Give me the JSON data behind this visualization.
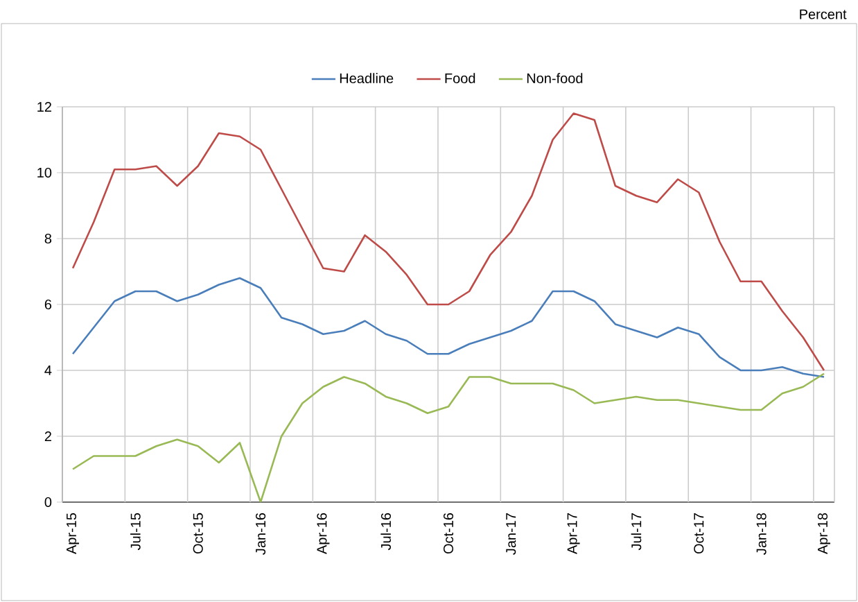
{
  "chart_data": {
    "type": "line",
    "annotations": [
      "Percent"
    ],
    "categories": [
      "Apr-15",
      null,
      null,
      "Jul-15",
      null,
      null,
      "Oct-15",
      null,
      null,
      "Jan-16",
      null,
      null,
      "Apr-16",
      null,
      null,
      "Jul-16",
      null,
      null,
      "Oct-16",
      null,
      null,
      "Jan-17",
      null,
      null,
      "Apr-17",
      null,
      null,
      "Jul-17",
      null,
      null,
      "Oct-17",
      null,
      null,
      "Jan-18",
      null,
      null,
      "Apr-18"
    ],
    "series": [
      {
        "name": "Headline",
        "color": "#4a7ebb",
        "values": [
          4.5,
          5.3,
          6.1,
          6.4,
          6.4,
          6.1,
          6.3,
          6.6,
          6.8,
          6.5,
          5.6,
          5.4,
          5.1,
          5.2,
          5.5,
          5.1,
          4.9,
          4.5,
          4.5,
          4.8,
          5.0,
          5.2,
          5.5,
          6.4,
          6.4,
          6.1,
          5.4,
          5.2,
          5.0,
          5.3,
          5.1,
          4.4,
          4.0,
          4.0,
          4.1,
          3.9,
          3.8
        ]
      },
      {
        "name": "Food",
        "color": "#be4b48",
        "values": [
          7.1,
          8.5,
          10.1,
          10.1,
          10.2,
          9.6,
          10.2,
          11.2,
          11.1,
          10.7,
          9.5,
          8.3,
          7.1,
          7.0,
          8.1,
          7.6,
          6.9,
          6.0,
          6.0,
          6.4,
          7.5,
          8.2,
          9.3,
          11.0,
          11.8,
          11.6,
          9.6,
          9.3,
          9.1,
          9.8,
          9.4,
          7.9,
          6.7,
          6.7,
          5.8,
          5.0,
          4.0
        ]
      },
      {
        "name": "Non-food",
        "color": "#98b954",
        "values": [
          1.0,
          1.4,
          1.4,
          1.4,
          1.7,
          1.9,
          1.7,
          1.2,
          1.8,
          0.0,
          2.0,
          3.0,
          3.5,
          3.8,
          3.6,
          3.2,
          3.0,
          2.7,
          2.9,
          3.8,
          3.8,
          3.6,
          3.6,
          3.6,
          3.4,
          3.0,
          3.1,
          3.2,
          3.1,
          3.1,
          3.0,
          2.9,
          2.8,
          2.8,
          3.3,
          3.5,
          3.9
        ]
      }
    ],
    "ylim": [
      0,
      12
    ],
    "yticks": [
      0,
      2,
      4,
      6,
      8,
      10,
      12
    ],
    "grid": true,
    "legend": "top",
    "marker": "none",
    "line_style": "solid"
  }
}
